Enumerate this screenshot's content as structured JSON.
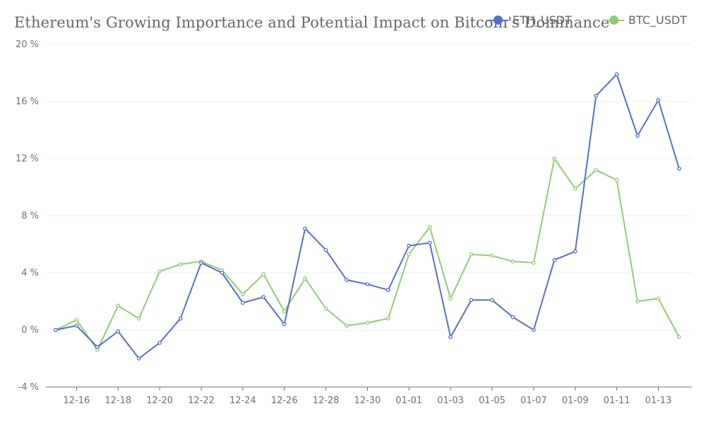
{
  "chart_data": {
    "type": "line",
    "title": "Ethereum's Growing Importance and Potential Impact on Bitcoin's Dominance",
    "legend_position": "top-right",
    "grid": true,
    "ylim": [
      -4,
      20
    ],
    "y_ticks": [
      "-4 %",
      "0 %",
      "4 %",
      "8 %",
      "12 %",
      "16 %",
      "20 %"
    ],
    "y_tick_values": [
      -4,
      0,
      4,
      8,
      12,
      16,
      20
    ],
    "x": [
      "12-15",
      "12-16",
      "12-17",
      "12-18",
      "12-19",
      "12-20",
      "12-21",
      "12-22",
      "12-23",
      "12-24",
      "12-25",
      "12-26",
      "12-27",
      "12-28",
      "12-29",
      "12-30",
      "12-31",
      "01-01",
      "01-02",
      "01-03",
      "01-04",
      "01-05",
      "01-06",
      "01-07",
      "01-08",
      "01-09",
      "01-10",
      "01-11",
      "01-12",
      "01-13",
      "01-14"
    ],
    "x_tick_labels": [
      "12-16",
      "12-18",
      "12-20",
      "12-22",
      "12-24",
      "12-26",
      "12-28",
      "12-30",
      "01-01",
      "01-03",
      "01-05",
      "01-07",
      "01-09",
      "01-11",
      "01-13"
    ],
    "series": [
      {
        "name": "ETH_USDT",
        "color": "#5470c6",
        "values": [
          0.0,
          0.3,
          -1.2,
          -0.1,
          -2.0,
          -0.9,
          0.8,
          4.7,
          4.0,
          1.9,
          2.3,
          0.4,
          7.1,
          5.6,
          3.5,
          3.2,
          2.8,
          5.9,
          6.1,
          -0.5,
          2.1,
          2.1,
          0.9,
          0.0,
          4.9,
          5.5,
          16.4,
          17.9,
          13.6,
          16.1,
          11.3
        ]
      },
      {
        "name": "BTC_USDT",
        "color": "#91cc75",
        "values": [
          0.0,
          0.7,
          -1.4,
          1.7,
          0.8,
          4.1,
          4.6,
          4.8,
          4.2,
          2.5,
          3.9,
          1.3,
          3.6,
          1.5,
          0.3,
          0.5,
          0.8,
          5.3,
          7.2,
          2.2,
          5.3,
          5.2,
          4.8,
          4.7,
          12.0,
          9.9,
          11.2,
          10.5,
          2.0,
          2.2,
          -0.5
        ]
      }
    ]
  }
}
